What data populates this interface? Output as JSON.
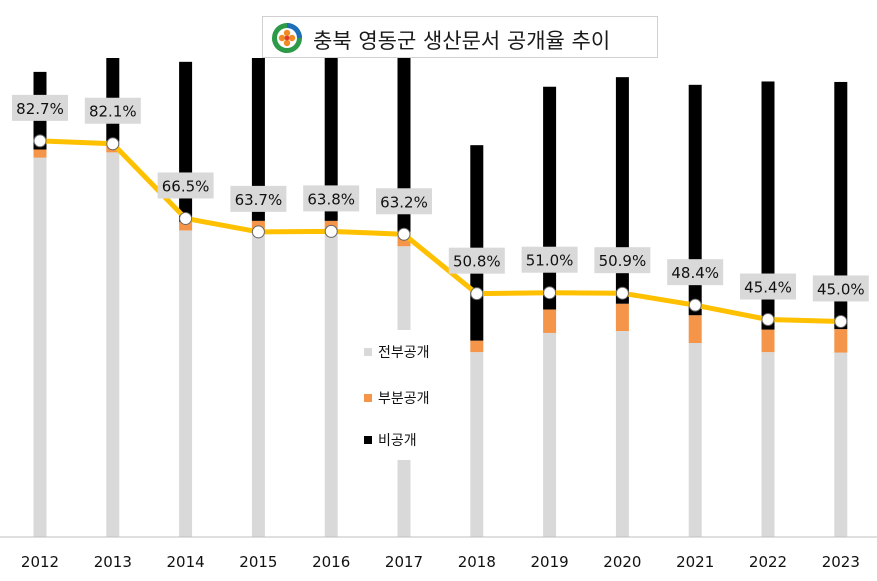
{
  "title": "충북 영동군 생산문서 공개율 추이",
  "colors": {
    "full": "#d9d9d9",
    "partial": "#f4954a",
    "nonpublic": "#000000",
    "rate_line": "#ffc000",
    "label_bg": "#d9d9d9",
    "axis": "#bfbfbf"
  },
  "legend": {
    "full": "전부공개",
    "partial": "부분공개",
    "nonpublic": "비공개"
  },
  "chart_data": {
    "type": "bar",
    "stacked": true,
    "categories": [
      "2012",
      "2013",
      "2014",
      "2015",
      "2016",
      "2017",
      "2018",
      "2019",
      "2020",
      "2021",
      "2022",
      "2023"
    ],
    "series": [
      {
        "name": "전부공개",
        "values": [
          79.2,
          80.3,
          64.0,
          63.8,
          64.0,
          60.7,
          38.6,
          42.6,
          43.0,
          40.5,
          38.6,
          38.5
        ]
      },
      {
        "name": "부분공개",
        "values": [
          1.7,
          2.3,
          1.8,
          2.2,
          2.0,
          3.0,
          2.4,
          4.9,
          5.7,
          5.8,
          4.7,
          4.9
        ]
      },
      {
        "name": "비공개",
        "values": [
          16.2,
          17.4,
          33.4,
          34.0,
          34.0,
          36.3,
          40.8,
          46.5,
          47.3,
          48.1,
          51.8,
          51.6
        ]
      }
    ],
    "line": {
      "name": "공개율",
      "values": [
        82.7,
        82.1,
        66.5,
        63.7,
        63.8,
        63.2,
        50.8,
        51.0,
        50.9,
        48.4,
        45.4,
        45.0
      ]
    },
    "line_labels": [
      "82.7%",
      "82.1%",
      "66.5%",
      "63.7%",
      "63.8%",
      "63.2%",
      "50.8%",
      "51.0%",
      "50.9%",
      "48.4%",
      "45.4%",
      "45.0%"
    ],
    "ylim": [
      0,
      100
    ],
    "xlabel": "",
    "ylabel": "",
    "legend_position": "center"
  }
}
